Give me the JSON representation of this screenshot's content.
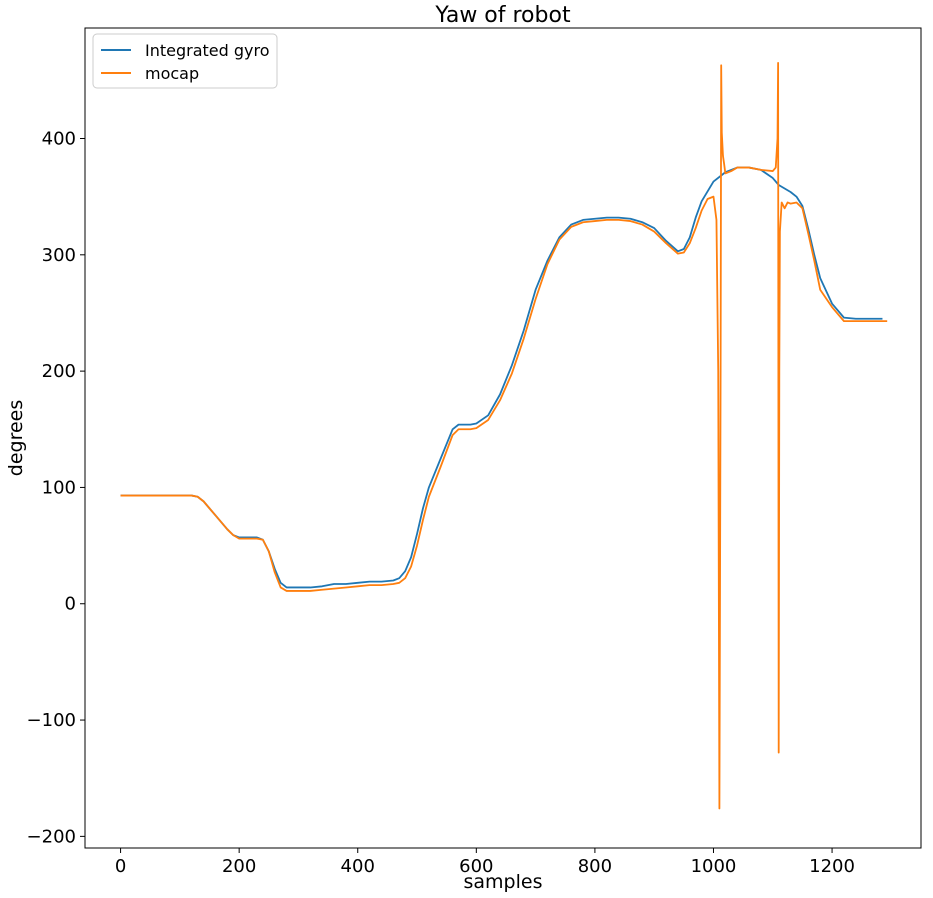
{
  "chart_data": {
    "type": "line",
    "title": "Yaw of robot",
    "xlabel": "samples",
    "ylabel": "degrees",
    "xlim": [
      -60,
      1350
    ],
    "ylim": [
      -210,
      495
    ],
    "xticks": [
      0,
      200,
      400,
      600,
      800,
      1000,
      1200
    ],
    "yticks": [
      -200,
      -100,
      0,
      100,
      200,
      300,
      400
    ],
    "ytick_labels": [
      "−200",
      "−100",
      "0",
      "100",
      "200",
      "300",
      "400"
    ],
    "grid": false,
    "legend_position": "top-left",
    "series": [
      {
        "name": "Integrated gyro",
        "color": "#1f77b4",
        "x": [
          0,
          30,
          60,
          90,
          120,
          130,
          140,
          150,
          160,
          170,
          180,
          190,
          200,
          210,
          220,
          230,
          240,
          250,
          260,
          270,
          280,
          290,
          300,
          320,
          340,
          360,
          380,
          400,
          420,
          440,
          460,
          470,
          480,
          490,
          500,
          510,
          520,
          540,
          560,
          570,
          580,
          590,
          600,
          620,
          640,
          660,
          680,
          700,
          720,
          740,
          760,
          780,
          800,
          820,
          840,
          860,
          880,
          900,
          920,
          940,
          950,
          960,
          970,
          980,
          1000,
          1020,
          1040,
          1060,
          1080,
          1100,
          1110,
          1130,
          1140,
          1150,
          1160,
          1170,
          1180,
          1200,
          1220,
          1240,
          1285
        ],
        "y": [
          93,
          93,
          93,
          93,
          93,
          92,
          88,
          82,
          76,
          70,
          64,
          59,
          57,
          57,
          57,
          57,
          55,
          45,
          30,
          18,
          14,
          14,
          14,
          14,
          15,
          17,
          17,
          18,
          19,
          19,
          20,
          22,
          28,
          40,
          60,
          82,
          100,
          125,
          150,
          154,
          154,
          154,
          155,
          162,
          180,
          205,
          235,
          270,
          295,
          315,
          326,
          330,
          331,
          332,
          332,
          331,
          328,
          323,
          312,
          303,
          305,
          315,
          332,
          346,
          363,
          371,
          375,
          375,
          373,
          366,
          360,
          354,
          350,
          342,
          322,
          300,
          280,
          258,
          246,
          245,
          245
        ]
      },
      {
        "name": "mocap",
        "color": "#ff7f0e",
        "x": [
          0,
          30,
          60,
          90,
          120,
          130,
          140,
          150,
          160,
          170,
          180,
          190,
          200,
          210,
          220,
          230,
          240,
          250,
          260,
          270,
          280,
          290,
          300,
          320,
          340,
          360,
          380,
          400,
          420,
          440,
          460,
          470,
          480,
          490,
          500,
          510,
          520,
          540,
          560,
          570,
          580,
          590,
          600,
          620,
          640,
          660,
          680,
          700,
          720,
          740,
          760,
          780,
          800,
          820,
          840,
          860,
          880,
          900,
          920,
          940,
          950,
          960,
          970,
          980,
          990,
          1000,
          1005,
          1008,
          1010,
          1012,
          1013,
          1014,
          1016,
          1018,
          1020,
          1030,
          1040,
          1060,
          1080,
          1100,
          1105,
          1108,
          1109,
          1110,
          1111,
          1112,
          1115,
          1120,
          1125,
          1130,
          1140,
          1150,
          1160,
          1170,
          1180,
          1200,
          1220,
          1240,
          1293
        ],
        "y": [
          93,
          93,
          93,
          93,
          93,
          92,
          88,
          82,
          76,
          70,
          64,
          59,
          56,
          56,
          56,
          56,
          55,
          45,
          27,
          14,
          11,
          11,
          11,
          11,
          12,
          13,
          14,
          15,
          16,
          16,
          17,
          18,
          22,
          32,
          50,
          72,
          92,
          118,
          145,
          150,
          150,
          150,
          151,
          158,
          175,
          198,
          228,
          262,
          292,
          313,
          324,
          328,
          329,
          330,
          330,
          329,
          326,
          320,
          310,
          301,
          302,
          310,
          323,
          338,
          348,
          350,
          330,
          200,
          -176,
          200,
          463,
          405,
          385,
          378,
          370,
          372,
          375,
          375,
          373,
          372,
          375,
          400,
          465,
          -128,
          200,
          320,
          345,
          340,
          345,
          344,
          345,
          340,
          318,
          295,
          270,
          255,
          243,
          243,
          243
        ]
      }
    ]
  }
}
